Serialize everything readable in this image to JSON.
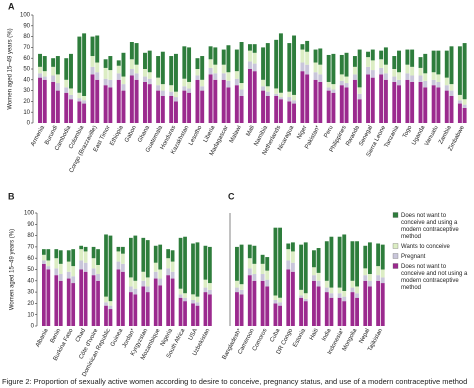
{
  "caption": "Figure 2: Proportion of sexually active women according to desire to conceive, pregnancy status, and use of a modern contraceptive method",
  "chart_data": [
    {
      "type": "bar",
      "stacked": true,
      "panel": "A",
      "ylabel": "Women aged 15–49 years (%)",
      "ylim": [
        0,
        100
      ],
      "yticks": [
        0,
        10,
        20,
        30,
        40,
        50,
        60,
        70,
        80,
        90,
        100
      ],
      "categories": [
        "Armenia",
        null,
        "Burundi",
        null,
        "Cambodia",
        null,
        "Colombia",
        null,
        "Congo (Brazzaville)",
        null,
        "East Timor",
        null,
        "Ethiopia",
        null,
        "Gabon",
        null,
        "Ghana",
        null,
        "Guatemala",
        null,
        "Honduras",
        null,
        "Kazakhstan",
        null,
        "Lesotho",
        null,
        "Liberia",
        null,
        "Madagascar",
        null,
        "Malawi",
        null,
        "Mali",
        null,
        "Namibia",
        null,
        "Netherlands",
        null,
        "Nicaragua",
        null,
        "Niger",
        null,
        "Pakistan*",
        null,
        "Peru",
        null,
        "Philippines",
        null,
        "Rwanda",
        null,
        "Senegal",
        null,
        "Sierra Leone",
        null,
        "Tanzania",
        null,
        "Togo",
        null,
        "Uganda",
        null,
        "Vanuatu",
        null,
        "Zambia",
        null,
        "Zimbabwe",
        null
      ],
      "series": [
        {
          "color": "#9b2a8e",
          "values": [
            42,
            40,
            38,
            30,
            28,
            22,
            20,
            18,
            45,
            40,
            35,
            33,
            40,
            30,
            44,
            40,
            38,
            36,
            30,
            25,
            25,
            20,
            30,
            28,
            40,
            30,
            45,
            40,
            40,
            33,
            35,
            25,
            50,
            48,
            30,
            25,
            25,
            22,
            20,
            18,
            48,
            45,
            40,
            38,
            30,
            28,
            35,
            33,
            40,
            22,
            45,
            42,
            45,
            40,
            38,
            35,
            40,
            38,
            38,
            33,
            35,
            33,
            30,
            25,
            18,
            14
          ]
        },
        {
          "color": "#c9c6da",
          "values": [
            4,
            3,
            6,
            7,
            5,
            4,
            3,
            3,
            7,
            7,
            6,
            7,
            6,
            6,
            6,
            6,
            5,
            5,
            5,
            5,
            4,
            4,
            4,
            4,
            4,
            4,
            6,
            6,
            6,
            6,
            6,
            6,
            7,
            7,
            4,
            4,
            2,
            2,
            4,
            3,
            8,
            9,
            7,
            7,
            3,
            3,
            4,
            4,
            5,
            5,
            7,
            7,
            6,
            6,
            5,
            5,
            6,
            6,
            6,
            6,
            5,
            5,
            5,
            5,
            3,
            3
          ]
        },
        {
          "color": "#dcedc4",
          "values": [
            6,
            5,
            8,
            8,
            7,
            6,
            5,
            4,
            10,
            9,
            10,
            9,
            7,
            7,
            9,
            8,
            7,
            6,
            7,
            6,
            6,
            5,
            7,
            6,
            6,
            6,
            8,
            8,
            8,
            8,
            7,
            6,
            10,
            10,
            6,
            5,
            5,
            4,
            5,
            5,
            12,
            12,
            9,
            9,
            5,
            5,
            6,
            6,
            7,
            6,
            9,
            9,
            8,
            8,
            7,
            7,
            8,
            8,
            7,
            7,
            7,
            7,
            7,
            6,
            5,
            5
          ]
        },
        {
          "color": "#2e7d3c",
          "values": [
            12,
            14,
            8,
            17,
            20,
            32,
            52,
            58,
            18,
            25,
            8,
            13,
            5,
            22,
            16,
            20,
            15,
            20,
            20,
            30,
            27,
            35,
            30,
            32,
            10,
            22,
            12,
            16,
            14,
            25,
            20,
            38,
            6,
            8,
            30,
            40,
            45,
            55,
            45,
            55,
            5,
            10,
            12,
            15,
            25,
            28,
            18,
            22,
            10,
            35,
            5,
            10,
            8,
            16,
            12,
            20,
            14,
            16,
            10,
            18,
            20,
            22,
            25,
            35,
            45,
            52
          ]
        }
      ]
    },
    {
      "type": "bar",
      "stacked": true,
      "panel": "B",
      "ylabel": "Women aged 15–49 years (%)",
      "ylim": [
        0,
        100
      ],
      "yticks": [
        0,
        10,
        20,
        30,
        40,
        50,
        60,
        70,
        80,
        90,
        100
      ],
      "categories": [
        "Albania",
        null,
        "Benin",
        null,
        "Burkina Faso",
        null,
        "Chad",
        null,
        "Côte d'Ivoire",
        null,
        "Dominican Republic",
        null,
        "Guinea",
        null,
        "Jordan*",
        null,
        "Kyrgyzstan",
        null,
        "Mozambique",
        null,
        "Nigeria",
        null,
        "South Africa",
        null,
        "USA",
        null,
        "Uzbekistan",
        null
      ],
      "series": [
        {
          "color": "#9b2a8e",
          "values": [
            55,
            50,
            45,
            40,
            42,
            38,
            50,
            48,
            45,
            40,
            18,
            15,
            50,
            48,
            30,
            28,
            35,
            30,
            42,
            36,
            45,
            42,
            25,
            22,
            20,
            18,
            30,
            28
          ]
        },
        {
          "color": "#c9c6da",
          "values": [
            3,
            3,
            6,
            6,
            6,
            6,
            8,
            8,
            6,
            6,
            3,
            3,
            7,
            7,
            5,
            5,
            5,
            5,
            6,
            6,
            6,
            6,
            3,
            3,
            3,
            3,
            4,
            4
          ]
        },
        {
          "color": "#dcedc4",
          "values": [
            5,
            5,
            9,
            9,
            9,
            9,
            10,
            10,
            9,
            8,
            5,
            4,
            9,
            9,
            8,
            7,
            8,
            8,
            8,
            8,
            9,
            9,
            5,
            4,
            5,
            5,
            7,
            6
          ]
        },
        {
          "color": "#2e7d3c",
          "values": [
            5,
            10,
            8,
            12,
            10,
            15,
            3,
            4,
            10,
            14,
            55,
            58,
            4,
            6,
            35,
            40,
            30,
            33,
            15,
            22,
            8,
            10,
            45,
            50,
            45,
            48,
            30,
            32
          ]
        }
      ]
    },
    {
      "type": "bar",
      "stacked": true,
      "panel": "C",
      "ylim": [
        0,
        100
      ],
      "legend": "right",
      "categories": [
        "Bangladesh*",
        null,
        "Cameroon",
        null,
        "Comoros",
        null,
        "Cuba",
        null,
        "DR Congo",
        null,
        "Estonia",
        null,
        "Haiti",
        null,
        "India",
        null,
        "Indonesia*",
        null,
        "Mongolia",
        null,
        "Nepal",
        null,
        "Tajikistan",
        null
      ],
      "series": [
        {
          "name": "Does not want to conceive and not using a modern contraceptive method",
          "color": "#9b2a8e",
          "values": [
            30,
            28,
            45,
            40,
            40,
            35,
            20,
            18,
            50,
            48,
            25,
            22,
            40,
            35,
            30,
            25,
            25,
            22,
            30,
            25,
            40,
            35,
            40,
            38
          ]
        },
        {
          "name": "Pregnant",
          "color": "#c9c6da",
          "values": [
            4,
            4,
            6,
            6,
            6,
            6,
            3,
            3,
            8,
            8,
            2,
            2,
            5,
            5,
            4,
            4,
            4,
            4,
            4,
            4,
            5,
            5,
            5,
            5
          ]
        },
        {
          "name": "Wants to conceive",
          "color": "#dcedc4",
          "values": [
            6,
            5,
            9,
            9,
            9,
            8,
            4,
            4,
            10,
            10,
            5,
            5,
            7,
            7,
            6,
            5,
            5,
            5,
            6,
            6,
            6,
            6,
            8,
            7
          ]
        },
        {
          "name": "Does not want to conceive and using a modern contraceptive method",
          "color": "#2e7d3c",
          "values": [
            30,
            35,
            12,
            16,
            8,
            12,
            60,
            62,
            5,
            8,
            40,
            45,
            15,
            22,
            35,
            45,
            45,
            50,
            35,
            40,
            20,
            28,
            20,
            22
          ]
        }
      ]
    }
  ]
}
